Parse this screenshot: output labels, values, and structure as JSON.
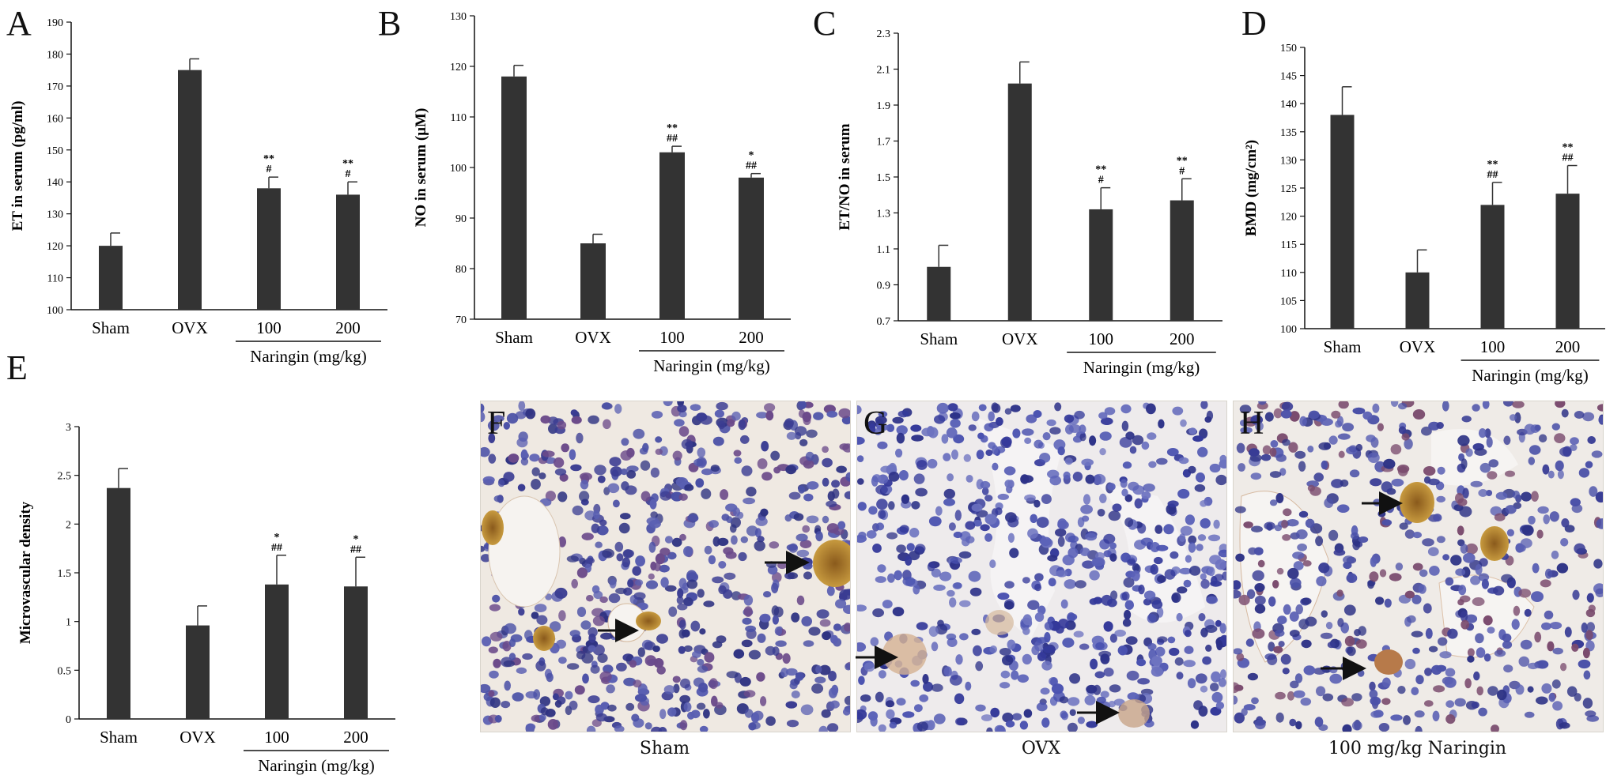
{
  "panels": {
    "A": "A",
    "B": "B",
    "C": "C",
    "D": "D",
    "E": "E",
    "F": "F",
    "G": "G",
    "H": "H"
  },
  "chart_data": [
    {
      "panel": "A",
      "type": "bar",
      "ylabel": "ET in serum (pg/ml)",
      "ylim": [
        100,
        190
      ],
      "yticks": [
        "100",
        "110",
        "120",
        "130",
        "140",
        "150",
        "160",
        "170",
        "180",
        "190"
      ],
      "categories": [
        "Sham",
        "OVX",
        "100",
        "200"
      ],
      "group_label": "Naringin (mg/kg)",
      "values": [
        120,
        175,
        138,
        136
      ],
      "errors": [
        4,
        3.5,
        3.5,
        4
      ],
      "annotations": [
        "",
        "",
        "**\n#",
        "**\n#"
      ]
    },
    {
      "panel": "B",
      "type": "bar",
      "ylabel": "NO in serum (μM)",
      "ylim": [
        70,
        130
      ],
      "yticks": [
        "70",
        "80",
        "90",
        "100",
        "110",
        "120",
        "130"
      ],
      "categories": [
        "Sham",
        "OVX",
        "100",
        "200"
      ],
      "group_label": "Naringin (mg/kg)",
      "values": [
        118,
        85,
        103,
        98
      ],
      "errors": [
        2.2,
        1.8,
        1.2,
        0.8
      ],
      "annotations": [
        "",
        "",
        "**\n##",
        "*\n##"
      ]
    },
    {
      "panel": "C",
      "type": "bar",
      "ylabel": "ET/NO in serum",
      "ylim": [
        0.7,
        2.3
      ],
      "yticks": [
        "0.7",
        "0.9",
        "1.1",
        "1.3",
        "1.5",
        "1.7",
        "1.9",
        "2.1",
        "2.3"
      ],
      "categories": [
        "Sham",
        "OVX",
        "100",
        "200"
      ],
      "group_label": "Naringin (mg/kg)",
      "values": [
        1.0,
        2.02,
        1.32,
        1.37
      ],
      "errors": [
        0.12,
        0.12,
        0.12,
        0.12
      ],
      "annotations": [
        "",
        "",
        "**\n#",
        "**\n#"
      ]
    },
    {
      "panel": "D",
      "type": "bar",
      "ylabel": "BMD (mg/cm²)",
      "ylim": [
        100,
        150
      ],
      "yticks": [
        "100",
        "105",
        "110",
        "115",
        "120",
        "125",
        "130",
        "135",
        "140",
        "145",
        "150"
      ],
      "categories": [
        "Sham",
        "OVX",
        "100",
        "200"
      ],
      "group_label": "Naringin (mg/kg)",
      "values": [
        138,
        110,
        122,
        124
      ],
      "errors": [
        5,
        4,
        4,
        5
      ],
      "annotations": [
        "",
        "",
        "**\n##",
        "**\n##"
      ]
    },
    {
      "panel": "E",
      "type": "bar",
      "ylabel": "Microvascular density",
      "ylim": [
        0,
        3
      ],
      "yticks": [
        "0",
        "0.5",
        "1",
        "1.5",
        "2",
        "2.5",
        "3"
      ],
      "categories": [
        "Sham",
        "OVX",
        "100",
        "200"
      ],
      "group_label": "Naringin (mg/kg)",
      "values": [
        2.37,
        0.96,
        1.38,
        1.36
      ],
      "errors": [
        0.2,
        0.2,
        0.3,
        0.3
      ],
      "annotations": [
        "",
        "",
        "*\n##",
        "*\n##"
      ]
    }
  ],
  "micrographs": {
    "F": {
      "caption": "Sham"
    },
    "G": {
      "caption": "OVX"
    },
    "H": {
      "caption": "100 mg/kg Naringin"
    }
  }
}
